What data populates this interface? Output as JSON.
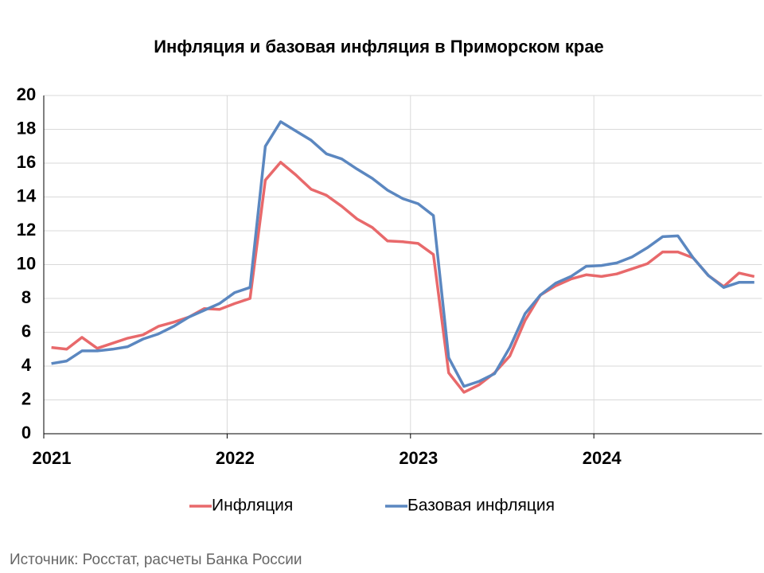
{
  "chart_data": {
    "type": "line",
    "title": "Инфляция и базовая инфляция в Приморском крае",
    "source": "Источник: Росстат, расчеты Банка России",
    "categories": [
      "2021",
      null,
      null,
      null,
      null,
      null,
      null,
      null,
      null,
      null,
      null,
      null,
      "2022",
      null,
      null,
      null,
      null,
      null,
      null,
      null,
      null,
      null,
      null,
      null,
      "2023",
      null,
      null,
      null,
      null,
      null,
      null,
      null,
      null,
      null,
      null,
      null,
      "2024",
      null,
      null,
      null,
      null,
      null,
      null,
      null,
      null,
      null,
      null
    ],
    "series": [
      {
        "name": "Инфляция",
        "color": "#e8696b",
        "values": [
          5.1,
          5.0,
          5.7,
          5.05,
          5.35,
          5.65,
          5.85,
          6.35,
          6.6,
          6.9,
          7.4,
          7.35,
          7.7,
          8.0,
          15.0,
          16.05,
          15.3,
          14.45,
          14.1,
          13.45,
          12.7,
          12.2,
          11.4,
          11.35,
          11.25,
          10.6,
          3.6,
          2.45,
          2.9,
          3.6,
          4.6,
          6.7,
          8.2,
          8.75,
          9.15,
          9.4,
          9.3,
          9.45,
          9.75,
          10.05,
          10.75,
          10.75,
          10.4,
          9.35,
          8.7,
          9.5,
          9.3
        ]
      },
      {
        "name": "Базовая инфляция",
        "color": "#5b87c0",
        "values": [
          4.15,
          4.3,
          4.9,
          4.9,
          5.0,
          5.15,
          5.6,
          5.9,
          6.35,
          6.9,
          7.3,
          7.7,
          8.35,
          8.65,
          17.0,
          18.45,
          17.9,
          17.35,
          16.55,
          16.25,
          15.65,
          15.1,
          14.4,
          13.9,
          13.6,
          12.9,
          4.5,
          2.8,
          3.1,
          3.55,
          5.1,
          7.1,
          8.2,
          8.9,
          9.3,
          9.9,
          9.95,
          10.1,
          10.45,
          11.0,
          11.65,
          11.7,
          10.4,
          9.35,
          8.65,
          8.95,
          8.95
        ]
      }
    ],
    "ylim": [
      0,
      20
    ],
    "yticks": [
      0,
      2,
      4,
      6,
      8,
      10,
      12,
      14,
      16,
      18,
      20
    ],
    "grid": true,
    "legend": "bottom"
  }
}
